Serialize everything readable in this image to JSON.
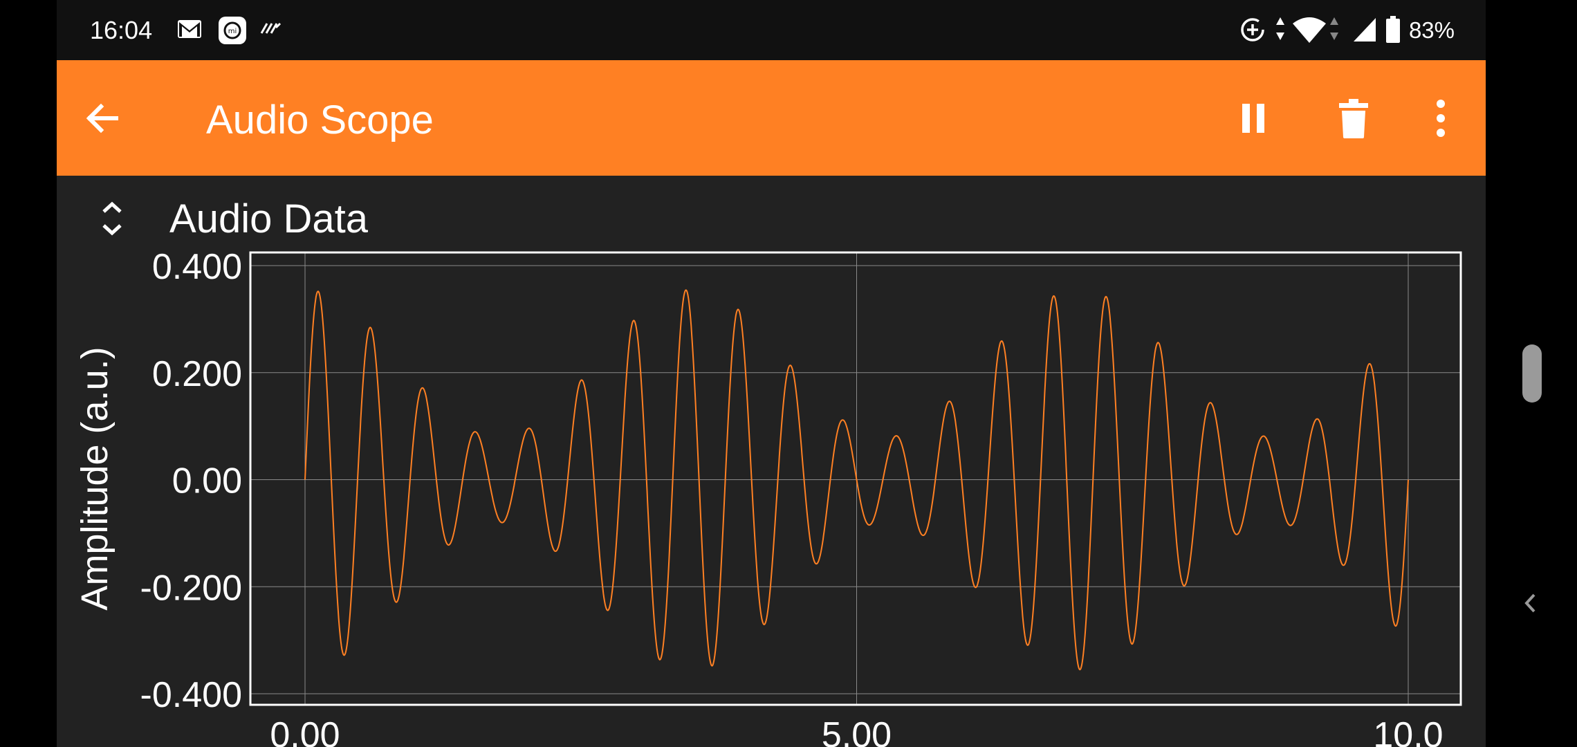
{
  "status_bar": {
    "time": "16:04",
    "battery": "83%",
    "icons": [
      "gmail-icon",
      "mi-icon",
      "notification-app-icon",
      "data-saver-icon",
      "data-arrows-icon",
      "wifi-icon",
      "signal-icon",
      "battery-icon"
    ]
  },
  "app_bar": {
    "title": "Audio Scope",
    "back_icon": "arrow-left-icon",
    "actions": [
      "pause-icon",
      "delete-icon",
      "more-vert-icon"
    ],
    "accent_color": "#FF8023"
  },
  "section": {
    "title": "Audio Data",
    "toggle_icon": "expand-collapse-icon"
  },
  "chart_data": {
    "type": "line",
    "title": "",
    "xlabel": "",
    "ylabel": "Amplitude (a.u.)",
    "xlim": [
      0,
      10
    ],
    "ylim": [
      -0.4,
      0.4
    ],
    "x_ticks": [
      "0.00",
      "5.00",
      "10.0"
    ],
    "y_ticks": [
      "0.400",
      "0.200",
      "0.00",
      "-0.200",
      "-0.400"
    ],
    "grid": true,
    "line_color": "#FF8023",
    "series": [
      {
        "description_of_shape": "Sine carrier (about 21 cycles over the range) whose amplitude is beat-modulated between about 0.08 and 0.36",
        "carrier_cycles": 21,
        "modulation_cycles": 2.85,
        "amplitude_max": 0.355,
        "amplitude_min": 0.08
      }
    ]
  },
  "side": {
    "handle_icon": "scroll-handle-icon",
    "chevron_icon": "chevron-left-icon"
  }
}
